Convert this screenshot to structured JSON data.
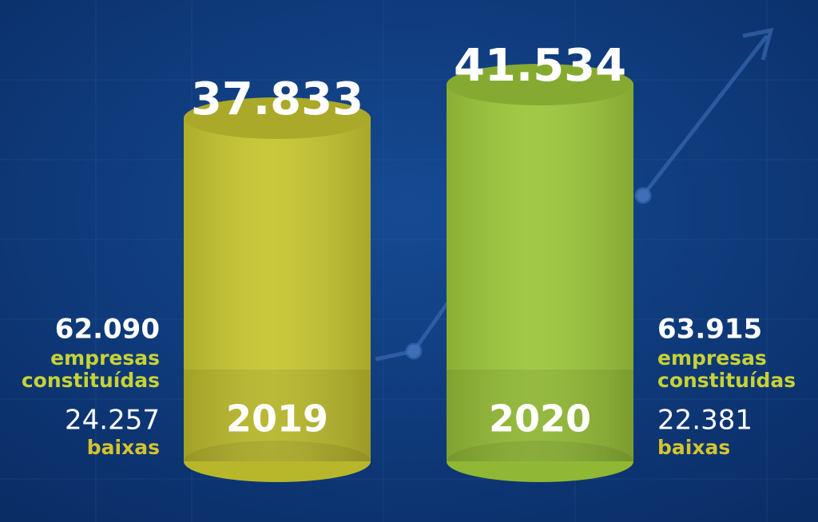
{
  "chart_data": {
    "type": "bar",
    "categories": [
      "2019",
      "2020"
    ],
    "values": [
      37833,
      41534
    ],
    "value_labels": [
      "37.833",
      "41.534"
    ],
    "colors": [
      "#c6c530",
      "#9cc63a"
    ],
    "annotations": [
      {
        "opened": "62.090",
        "opened_text": [
          "empresas",
          "constituídas"
        ],
        "closed": "24.257",
        "closed_text": "baixas"
      },
      {
        "opened": "63.915",
        "opened_text": [
          "empresas",
          "constituídas"
        ],
        "closed": "22.381",
        "closed_text": "baixas"
      }
    ]
  }
}
